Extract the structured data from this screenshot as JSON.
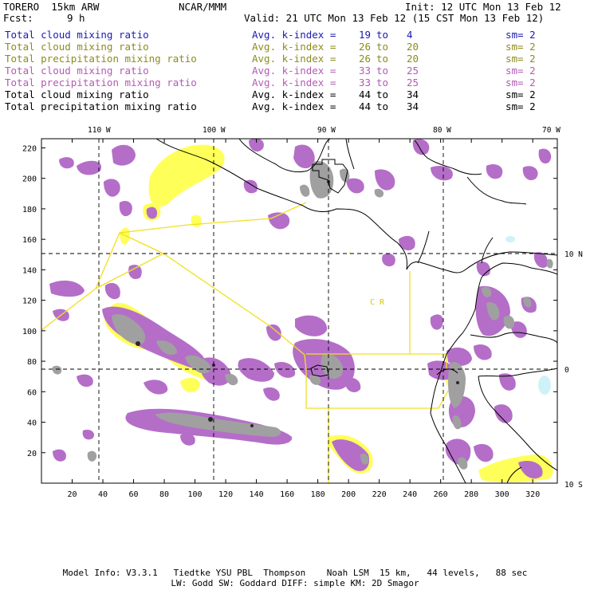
{
  "header": {
    "model": "TORERO  15km ARW",
    "org": "NCAR/MMM",
    "init": "Init: 12 UTC Mon 13 Feb 12",
    "fcst_label": "Fcst:",
    "fcst_value": "9 h",
    "valid": "Valid: 21 UTC Mon 13 Feb 12 (15 CST Mon 13 Feb 12)"
  },
  "legend": [
    {
      "field": "Total cloud mixing ratio",
      "k_label": "Avg. k-index =",
      "k_from": "19",
      "to": "to",
      "k_to": "4",
      "sm": "sm= 2",
      "color": "#1a1ab4"
    },
    {
      "field": "Total cloud mixing ratio",
      "k_label": "Avg. k-index =",
      "k_from": "26",
      "to": "to",
      "k_to": "20",
      "sm": "sm= 2",
      "color": "#8c8c1e"
    },
    {
      "field": "Total precipitation mixing ratio",
      "k_label": "Avg. k-index =",
      "k_from": "26",
      "to": "to",
      "k_to": "20",
      "sm": "sm= 2",
      "color": "#8c8c1e"
    },
    {
      "field": "Total cloud mixing ratio",
      "k_label": "Avg. k-index =",
      "k_from": "33",
      "to": "to",
      "k_to": "25",
      "sm": "sm= 2",
      "color": "#b45ab4"
    },
    {
      "field": "Total precipitation mixing ratio",
      "k_label": "Avg. k-index =",
      "k_from": "33",
      "to": "to",
      "k_to": "25",
      "sm": "sm= 2",
      "color": "#b45ab4"
    },
    {
      "field": "Total cloud mixing ratio",
      "k_label": "Avg. k-index =",
      "k_from": "44",
      "to": "to",
      "k_to": "34",
      "sm": "sm= 2",
      "color": "#000000"
    },
    {
      "field": "Total precipitation mixing ratio",
      "k_label": "Avg. k-index =",
      "k_from": "44",
      "to": "to",
      "k_to": "34",
      "sm": "sm= 2",
      "color": "#000000"
    }
  ],
  "map": {
    "lon_labels": [
      "110 W",
      "100 W",
      "90 W",
      "80 W",
      "70 W"
    ],
    "lat_labels": [
      "10 N",
      "0",
      "10 S"
    ],
    "x_ticks": [
      "20",
      "40",
      "60",
      "80",
      "100",
      "120",
      "140",
      "160",
      "180",
      "200",
      "220",
      "240",
      "260",
      "280",
      "300",
      "320"
    ],
    "y_ticks": [
      "20",
      "40",
      "60",
      "80",
      "100",
      "120",
      "140",
      "160",
      "180",
      "200",
      "220"
    ],
    "region_label": "C  R",
    "colors": {
      "cloud_purple": "#b46ec8",
      "precip_yellow": "#ffff5a",
      "heavy_gray": "#a0a0a0",
      "dark_core": "#282828",
      "ice_cyan": "#cff2f8",
      "box_line": "#f0e020"
    }
  },
  "footer": {
    "line1": "Model Info: V3.3.1   Tiedtke YSU PBL  Thompson    Noah LSM  15 km,   44 levels,   88 sec",
    "line2": "LW: Godd SW: Goddard DIFF: simple KM: 2D Smagor"
  }
}
